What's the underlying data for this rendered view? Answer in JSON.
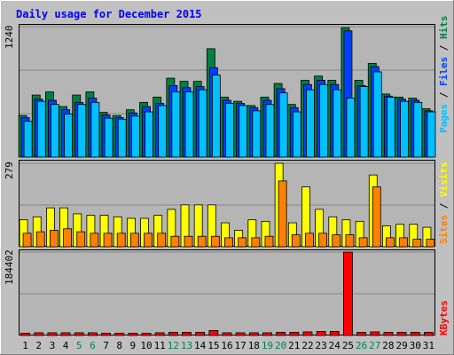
{
  "chart_data": {
    "type": "bar",
    "title": "Daily usage for December 2015",
    "categories": [
      "1",
      "2",
      "3",
      "4",
      "5",
      "6",
      "7",
      "8",
      "9",
      "10",
      "11",
      "12",
      "13",
      "14",
      "15",
      "16",
      "17",
      "18",
      "19",
      "20",
      "21",
      "22",
      "23",
      "24",
      "25",
      "26",
      "27",
      "28",
      "29",
      "30",
      "31"
    ],
    "weekend_days": [
      "5",
      "6",
      "12",
      "13",
      "19",
      "20",
      "26",
      "27"
    ],
    "panels": [
      {
        "id": "hits",
        "max_label": "1240",
        "ylim": [
          0,
          1240
        ],
        "right_labels": [
          {
            "text": "Hits",
            "color": "#008040"
          },
          {
            "text": "Files",
            "color": "#0040ff"
          },
          {
            "text": "Pages",
            "color": "#00c0ff"
          }
        ],
        "series": [
          {
            "name": "Hits",
            "color": "#008040",
            "values": [
              395,
              590,
              620,
              480,
              590,
              620,
              425,
              395,
              450,
              520,
              570,
              750,
              720,
              720,
              1030,
              570,
              530,
              490,
              570,
              700,
              500,
              730,
              770,
              730,
              1230,
              730,
              890,
              600,
              570,
              560,
              460
            ]
          },
          {
            "name": "Files",
            "color": "#0040ff",
            "values": [
              375,
              550,
              540,
              450,
              520,
              560,
              400,
              375,
              420,
              480,
              510,
              680,
              660,
              670,
              850,
              540,
              510,
              470,
              540,
              650,
              470,
              690,
              730,
              690,
              1200,
              680,
              860,
              580,
              550,
              540,
              440
            ]
          },
          {
            "name": "Pages",
            "color": "#00c0ff",
            "values": [
              340,
              530,
              500,
              410,
              500,
              520,
              370,
              360,
              390,
              430,
              490,
              620,
              620,
              640,
              780,
              510,
              490,
              440,
              500,
              610,
              430,
              640,
              690,
              640,
              560,
              670,
              810,
              570,
              530,
              520,
              430
            ]
          }
        ]
      },
      {
        "id": "visits",
        "max_label": "279",
        "ylim": [
          0,
          279
        ],
        "right_labels": [
          {
            "text": "Visits",
            "color": "#ffff00"
          },
          {
            "text": "Sites",
            "color": "#ff8000"
          }
        ],
        "series": [
          {
            "name": "Visits",
            "color": "#ffff00",
            "values": [
              90,
              100,
              130,
              130,
              110,
              105,
              105,
              100,
              95,
              95,
              105,
              125,
              140,
              140,
              140,
              80,
              55,
              90,
              85,
              279,
              80,
              200,
              125,
              100,
              90,
              85,
              240,
              70,
              75,
              75,
              65
            ]
          },
          {
            "name": "Sites",
            "color": "#ff8000",
            "values": [
              45,
              50,
              55,
              60,
              50,
              45,
              45,
              45,
              45,
              45,
              45,
              35,
              35,
              35,
              35,
              30,
              30,
              30,
              35,
              220,
              40,
              45,
              45,
              40,
              40,
              30,
              200,
              30,
              30,
              25,
              25
            ]
          }
        ]
      },
      {
        "id": "kbytes",
        "max_label": "184402",
        "ylim": [
          0,
          184402
        ],
        "right_labels": [
          {
            "text": "KBytes",
            "color": "#ff0000"
          }
        ],
        "series": [
          {
            "name": "KBytes",
            "color": "#ff0000",
            "values": [
              5000,
              6000,
              6000,
              6000,
              6000,
              6000,
              5000,
              5000,
              5000,
              5000,
              6000,
              7000,
              7000,
              7000,
              11000,
              6000,
              6000,
              6000,
              6000,
              7000,
              7000,
              8000,
              9000,
              9000,
              184402,
              7000,
              8000,
              7000,
              7000,
              7000,
              7000
            ]
          }
        ]
      }
    ],
    "colors": {
      "frame": "#c0c0c0",
      "plot_bg": "#b5b5b5",
      "title": "#0000ff",
      "weekday_label": "#000000",
      "weekend_label": "#00805c"
    }
  }
}
